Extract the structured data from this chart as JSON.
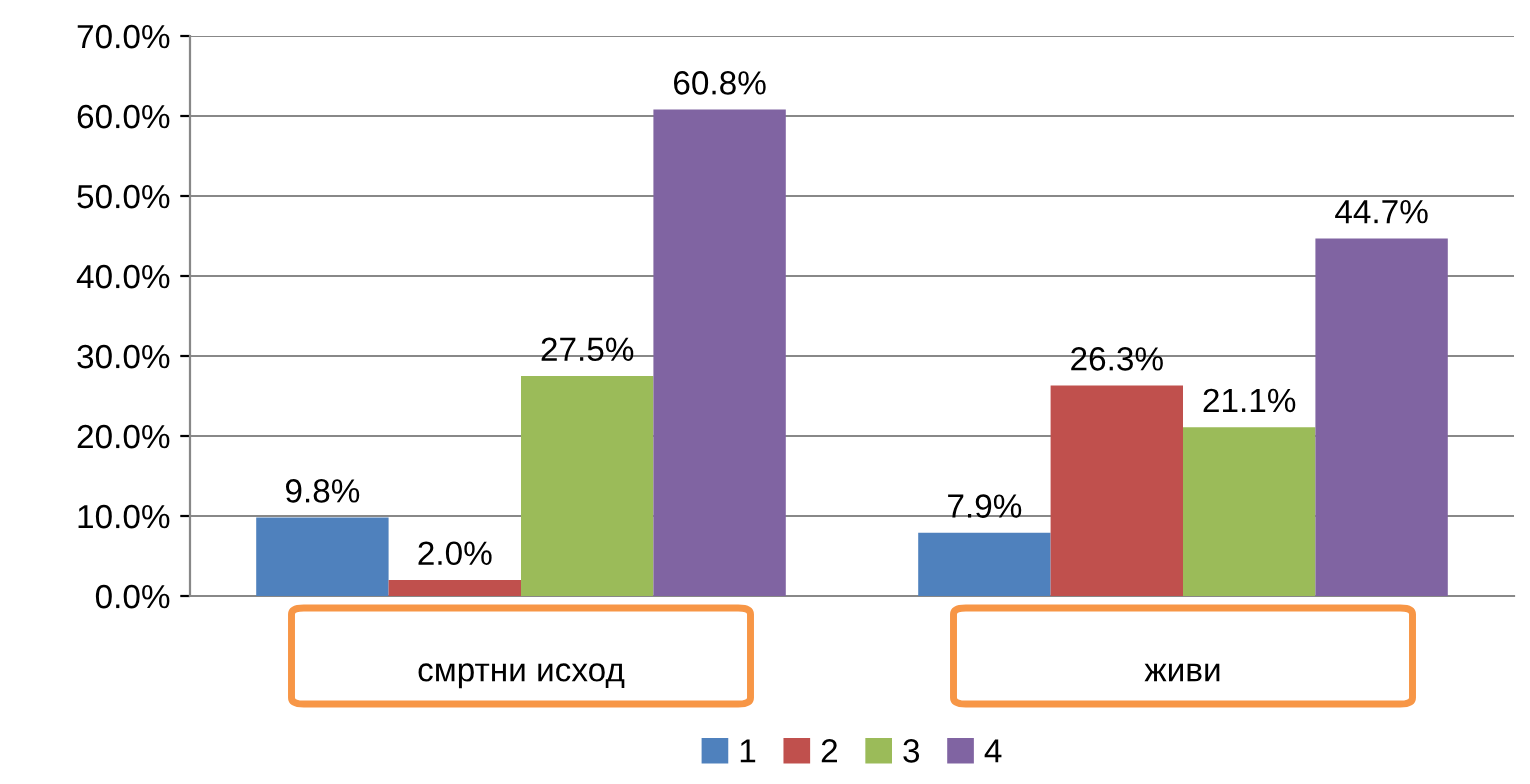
{
  "chart_data": {
    "type": "bar",
    "categories": [
      "смртни исход",
      "живи"
    ],
    "series": [
      {
        "name": "1",
        "color": "#4f81bd",
        "values": [
          9.8,
          7.9
        ],
        "value_labels": [
          "9.8%",
          "7.9%"
        ]
      },
      {
        "name": "2",
        "color": "#c0504d",
        "values": [
          2.0,
          26.3
        ],
        "value_labels": [
          "2.0%",
          "26.3%"
        ]
      },
      {
        "name": "3",
        "color": "#9bbb59",
        "values": [
          27.5,
          21.1
        ],
        "value_labels": [
          "27.5%",
          "21.1%"
        ]
      },
      {
        "name": "4",
        "color": "#8064a2",
        "values": [
          60.8,
          44.7
        ],
        "value_labels": [
          "60.8%",
          "44.7%"
        ]
      }
    ],
    "ylim": [
      0,
      70
    ],
    "yticks": [
      {
        "value": 0,
        "label": "0.0%"
      },
      {
        "value": 10,
        "label": "10.0%"
      },
      {
        "value": 20,
        "label": "20.0%"
      },
      {
        "value": 30,
        "label": "30.0%"
      },
      {
        "value": 40,
        "label": "40.0%"
      },
      {
        "value": 50,
        "label": "50.0%"
      },
      {
        "value": 60,
        "label": "60.0%"
      },
      {
        "value": 70,
        "label": "70.0%"
      }
    ],
    "grid": "y",
    "legend": "bottom"
  }
}
